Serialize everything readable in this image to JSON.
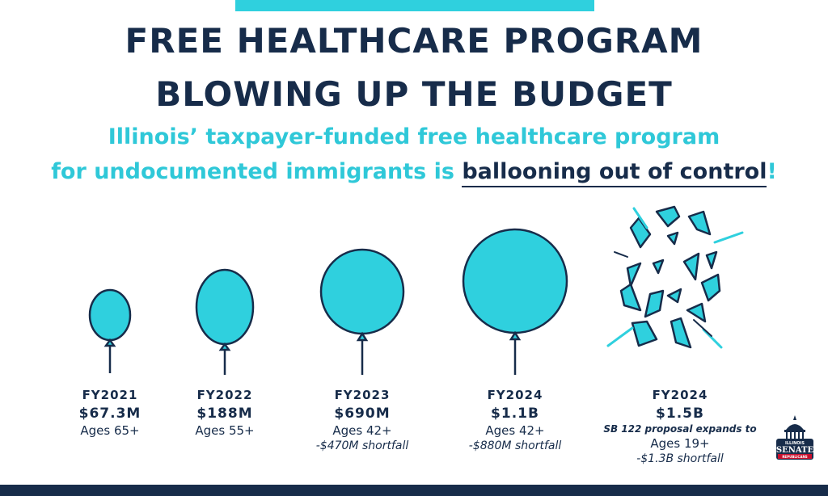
{
  "title_line1": "FREE HEALTHCARE PROGRAM",
  "title_line2": "BLOWING UP THE BUDGET",
  "subtitle_line1": "Illinois’ taxpayer-funded free healthcare program",
  "subtitle_line2_prefix": "for undocumented immigrants is ",
  "subtitle_line2_emphasis": "ballooning out of control",
  "subtitle_line2_suffix": "!",
  "balloons": [
    {
      "year": "FY2021",
      "amount": "$67.3M",
      "ages": "Ages 65+"
    },
    {
      "year": "FY2022",
      "amount": "$188M",
      "ages": "Ages 55+"
    },
    {
      "year": "FY2023",
      "amount": "$690M",
      "ages": "Ages 42+",
      "shortfall": "-$470M shortfall"
    },
    {
      "year": "FY2024",
      "amount": "$1.1B",
      "ages": "Ages 42+",
      "shortfall": "-$880M shortfall"
    },
    {
      "year": "FY2024",
      "amount": "$1.5B",
      "note": "SB 122 proposal expands to",
      "ages": "Ages 19+",
      "shortfall": "-$1.3B shortfall"
    }
  ],
  "seal": {
    "line1": "ILLINOIS",
    "line2": "SENATE",
    "line3": "REPUBLICANS"
  },
  "colors": {
    "navy": "#172c4a",
    "cyan": "#2fd0de"
  }
}
